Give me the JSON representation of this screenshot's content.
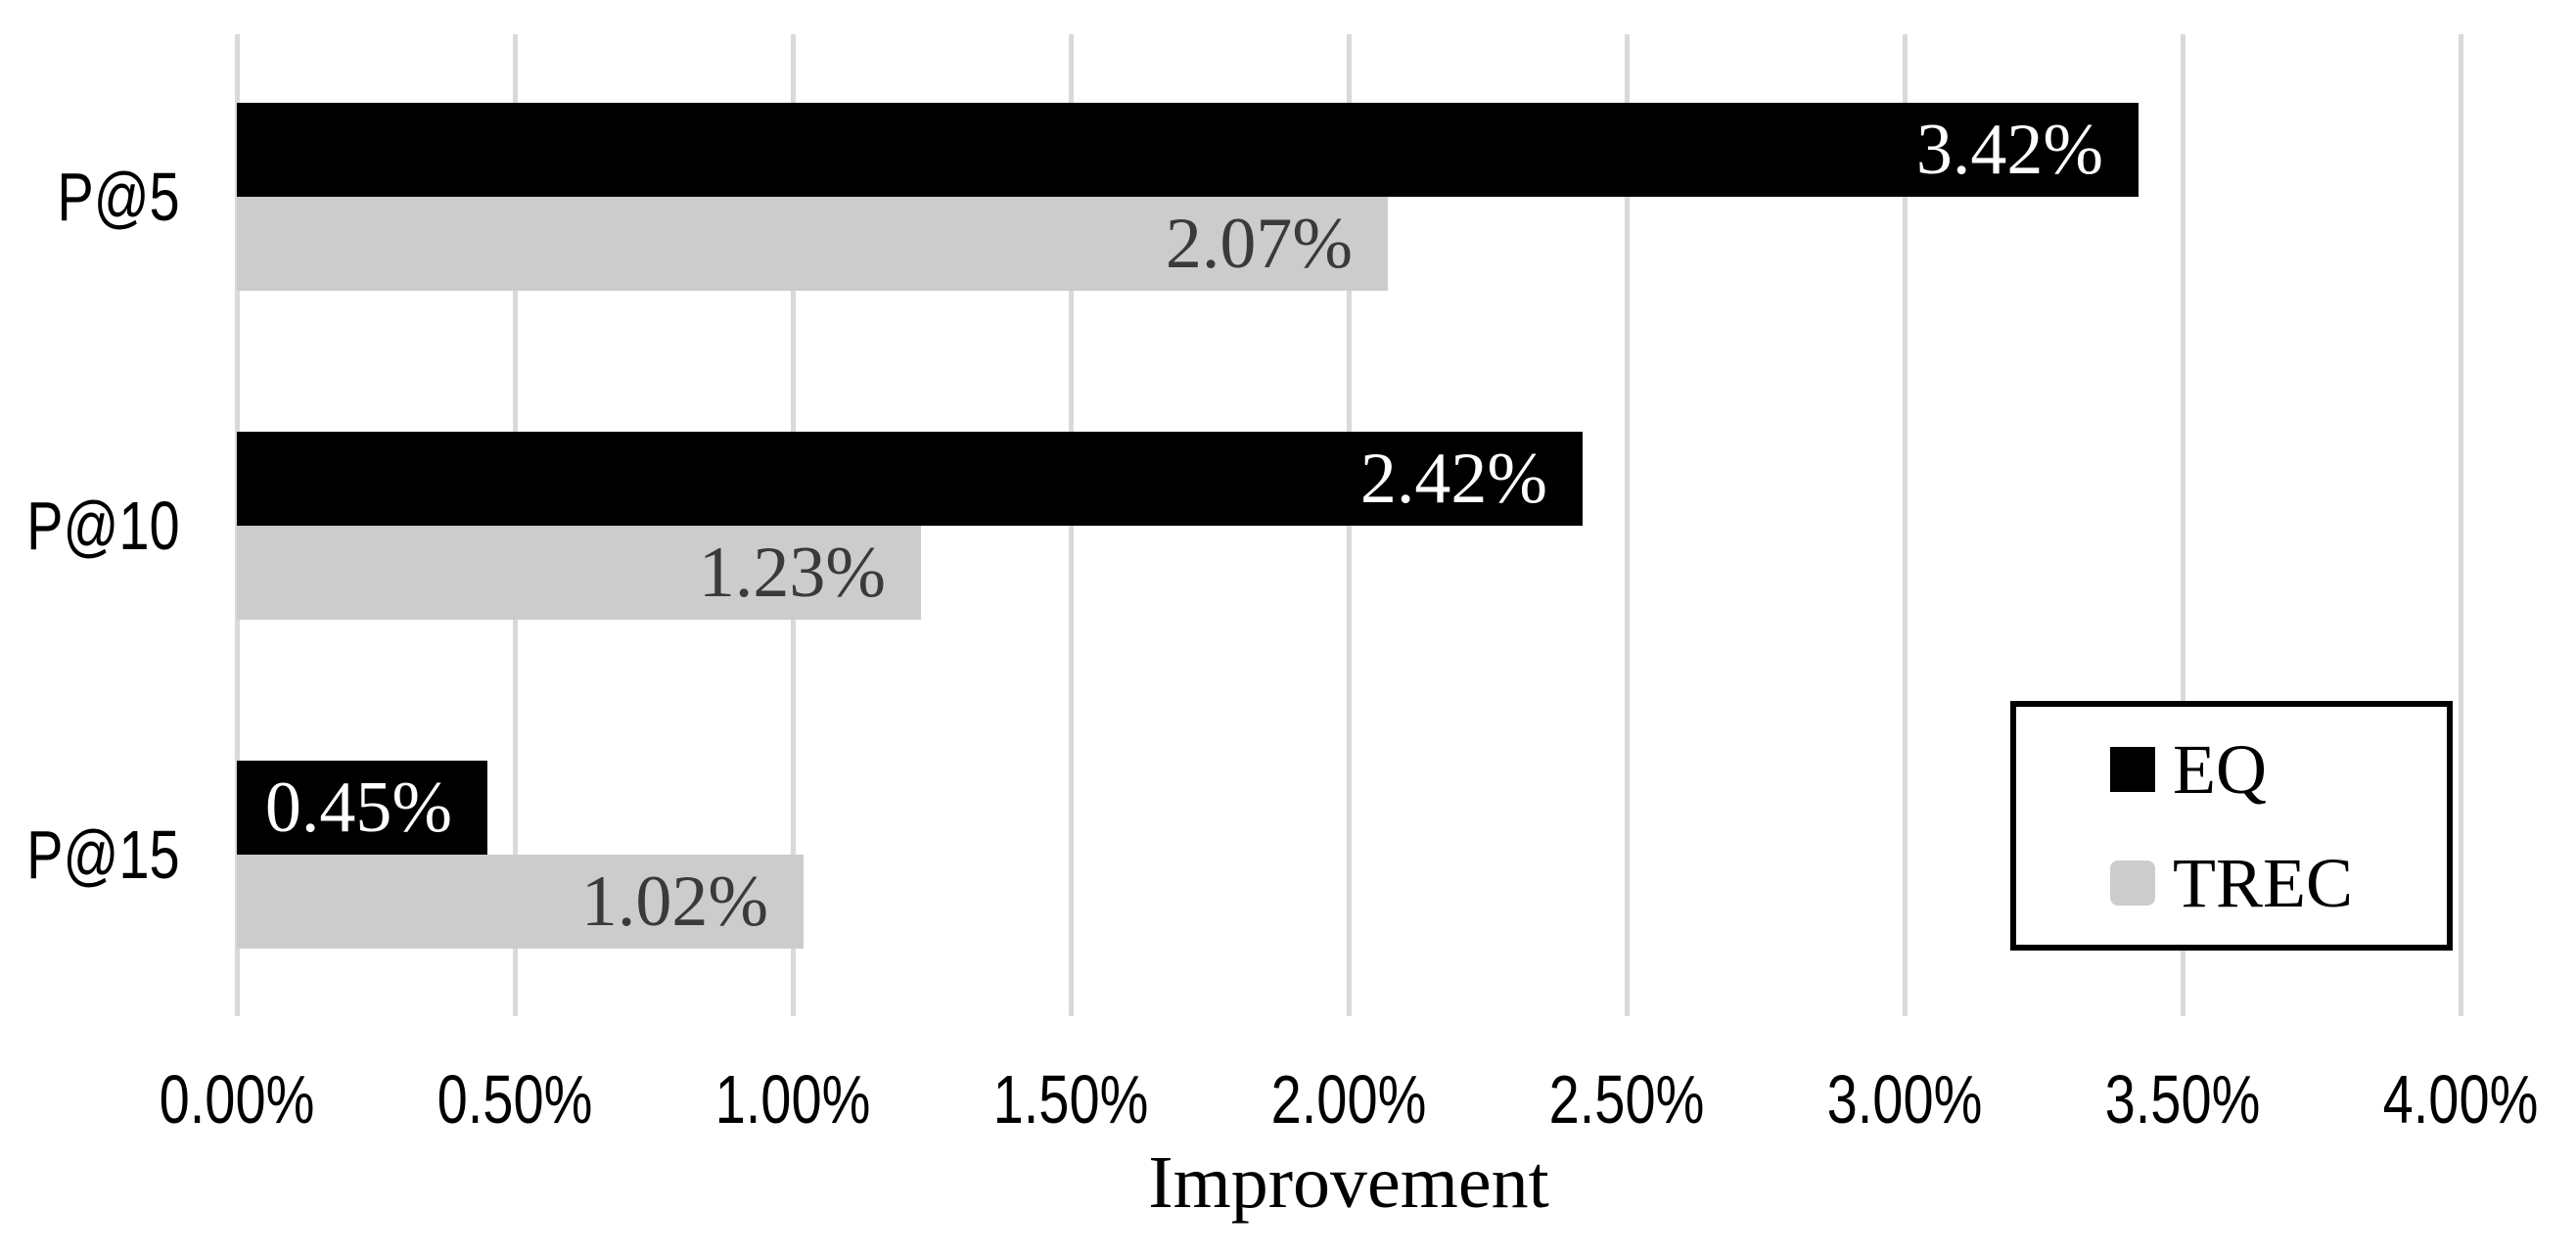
{
  "chart_data": {
    "type": "bar",
    "orientation": "horizontal",
    "title": "",
    "xlabel": "Improvement",
    "categories": [
      "P@5",
      "P@10",
      "P@15"
    ],
    "series": [
      {
        "name": "EQ",
        "color": "#000000",
        "label_color": "#ffffff",
        "values": [
          3.42,
          2.42,
          0.45
        ],
        "labels": [
          "3.42%",
          "2.42%",
          "0.45%"
        ]
      },
      {
        "name": "TREC",
        "color": "#cccccc",
        "label_color": "#3a3a3a",
        "values": [
          2.07,
          1.23,
          1.02
        ],
        "labels": [
          "2.07%",
          "1.23%",
          "1.02%"
        ]
      }
    ],
    "xlim": [
      0,
      4
    ],
    "x_tick_step": 0.5,
    "x_ticks": [
      "0.00%",
      "0.50%",
      "1.00%",
      "1.50%",
      "2.00%",
      "2.50%",
      "3.00%",
      "3.50%",
      "4.00%"
    ],
    "grid": "vertical",
    "gridline_color": "#d9d9d9",
    "legend": {
      "position": "middle-right",
      "entries": [
        "EQ",
        "TREC"
      ]
    }
  }
}
